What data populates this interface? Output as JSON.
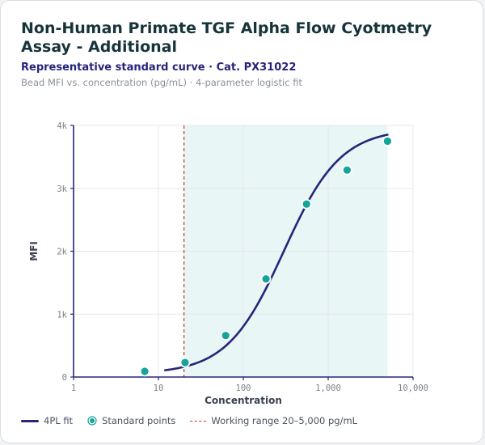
{
  "header": {
    "title": "Non-Human Primate TGF Alpha Flow Cyotmetry Assay - Additional",
    "subtitle": "Representative standard curve · Cat. PX31022",
    "caption": "Bead MFI vs. concentration (pg/mL) · 4-parameter logistic fit"
  },
  "legend": {
    "fit_label": "4PL fit",
    "points_label": "Standard points",
    "range_label": "Working range 20–5,000 pg/mL"
  },
  "colors": {
    "fit": "#26257a",
    "points": "#15a39a",
    "range_line": "#c0392b",
    "range_fill": "#e9f6f6",
    "axis": "#26257a",
    "grid": "#e4e7ec",
    "tick_text": "#7a808a",
    "axis_label": "#3a4150"
  },
  "chart_data": {
    "type": "scatter",
    "x_scale": "log",
    "xlabel": "Concentration",
    "ylabel": "MFI",
    "xlim": [
      1,
      10000
    ],
    "ylim": [
      0,
      4000
    ],
    "x_ticks": [
      1,
      10,
      100,
      1000,
      10000
    ],
    "x_tick_labels": [
      "1",
      "10",
      "100",
      "1,000",
      "10,000"
    ],
    "y_ticks": [
      0,
      1000,
      2000,
      3000,
      4000
    ],
    "y_tick_labels": [
      "0",
      "1k",
      "2k",
      "3k",
      "4k"
    ],
    "grid": true,
    "legend_position": "bottom",
    "working_range": [
      20,
      5000
    ],
    "series": [
      {
        "name": "Standard points",
        "points": [
          {
            "x": 6.9,
            "y": 90
          },
          {
            "x": 20.6,
            "y": 230
          },
          {
            "x": 62,
            "y": 660
          },
          {
            "x": 185,
            "y": 1560
          },
          {
            "x": 556,
            "y": 2750
          },
          {
            "x": 1670,
            "y": 3290
          },
          {
            "x": 5000,
            "y": 3750
          }
        ]
      },
      {
        "name": "4PL fit",
        "x_range": [
          12,
          5000
        ],
        "params": {
          "bottom": 50,
          "top": 3950,
          "ec50": 300,
          "hill": 1.3
        }
      }
    ]
  }
}
